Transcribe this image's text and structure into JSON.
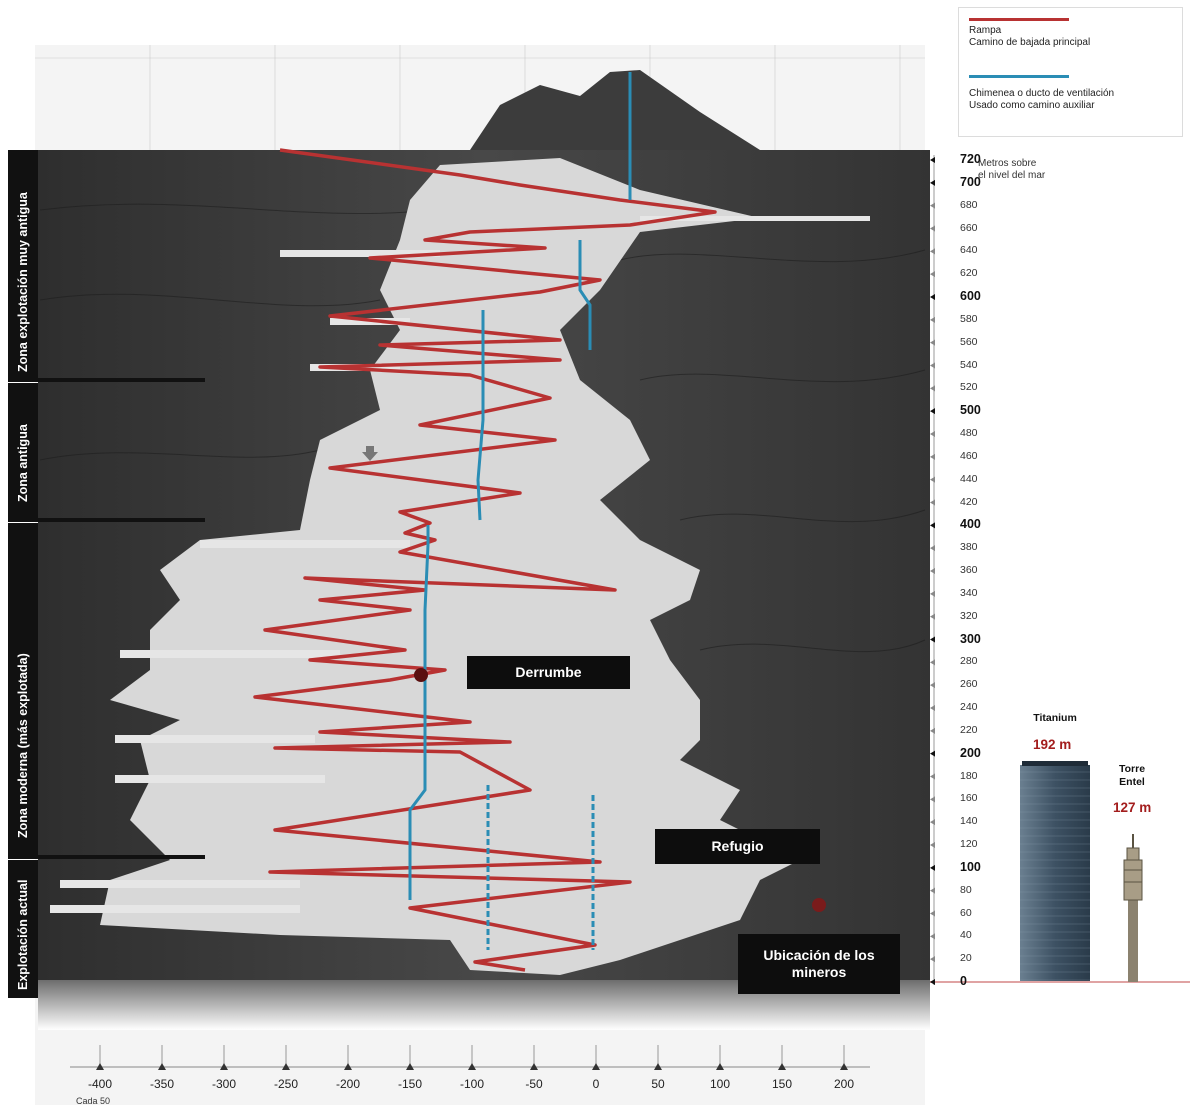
{
  "legend": {
    "ramp_title": "Rampa",
    "ramp_desc": "Camino de bajada principal",
    "chimney_title": "Chimenea o ducto de ventilación",
    "chimney_desc": "Usado como camino auxiliar",
    "ramp_color": "#b83232",
    "chimney_color": "#2a8db5"
  },
  "elevation": {
    "unit_label_1": "Metros sobre",
    "unit_label_2": "el nivel del mar",
    "ticks": [
      "0",
      "20",
      "40",
      "60",
      "80",
      "100",
      "120",
      "140",
      "160",
      "180",
      "200",
      "220",
      "240",
      "260",
      "280",
      "300",
      "320",
      "340",
      "360",
      "380",
      "400",
      "420",
      "440",
      "460",
      "480",
      "500",
      "520",
      "540",
      "560",
      "580",
      "600",
      "620",
      "640",
      "660",
      "680",
      "700",
      "720"
    ]
  },
  "x_axis": {
    "ticks": [
      "-400",
      "-350",
      "-300",
      "-250",
      "-200",
      "-150",
      "-100",
      "-50",
      "0",
      "50",
      "100",
      "150",
      "200"
    ],
    "note": "Cada 50"
  },
  "zones": [
    {
      "label": "Zona explotación muy antigua"
    },
    {
      "label": "Zona antigua"
    },
    {
      "label": "Zona moderna (más explotada)"
    },
    {
      "label": "Explotación actual"
    }
  ],
  "callouts": {
    "derrumbe": "Derrumbe",
    "refugio": "Refugio",
    "miners_line1": "Ubicación de los",
    "miners_line2": "mineros"
  },
  "buildings": {
    "titanium_name": "Titanium",
    "titanium_height": "192 m",
    "entel_name_1": "Torre",
    "entel_name_2": "Entel",
    "entel_height": "127 m"
  },
  "colors": {
    "rock_dark": "#3a3a3a",
    "cavity_light": "#d9d9d9",
    "marker": "#5a0f0f",
    "accent_red": "#a31d1d"
  }
}
